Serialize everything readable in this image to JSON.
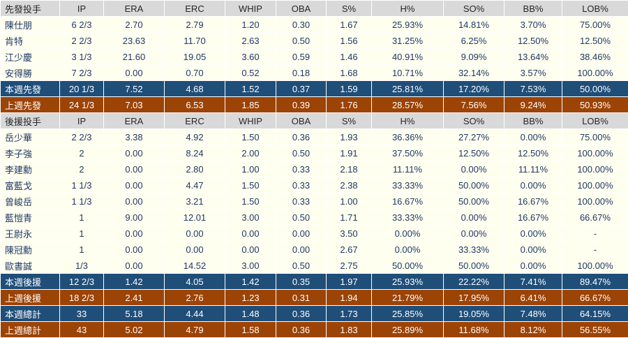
{
  "colors": {
    "header_bg": "#d9d9d9",
    "header_text": "#262626",
    "data_bg": "#fffff0",
    "data_text": "#1f3864",
    "blue_bg": "#1f4e79",
    "brown_bg": "#9c4306",
    "summary_text": "#ffffff",
    "grid": "#ffffff"
  },
  "chart_data": {
    "type": "table",
    "columns": [
      "IP",
      "ERA",
      "ERC",
      "WHIP",
      "OBA",
      "S%",
      "H%",
      "SO%",
      "BB%",
      "LOB%"
    ],
    "sections": [
      {
        "header": "先發投手",
        "rows": [
          {
            "style": "data",
            "label": "陳仕朋",
            "values": [
              "6 2/3",
              "2.70",
              "2.79",
              "1.20",
              "0.30",
              "1.67",
              "25.93%",
              "14.81%",
              "3.70%",
              "75.00%"
            ]
          },
          {
            "style": "data",
            "label": "肯特",
            "values": [
              "2 2/3",
              "23.63",
              "11.70",
              "2.63",
              "0.50",
              "1.56",
              "31.25%",
              "6.25%",
              "12.50%",
              "12.50%"
            ]
          },
          {
            "style": "data",
            "label": "江少慶",
            "values": [
              "3 1/3",
              "21.60",
              "19.05",
              "3.60",
              "0.59",
              "1.46",
              "40.91%",
              "9.09%",
              "13.64%",
              "38.46%"
            ]
          },
          {
            "style": "data",
            "label": "安得勝",
            "values": [
              "7 2/3",
              "0.00",
              "0.70",
              "0.52",
              "0.18",
              "1.68",
              "10.71%",
              "32.14%",
              "3.57%",
              "100.00%"
            ]
          },
          {
            "style": "blue",
            "label": "本週先發",
            "values": [
              "20 1/3",
              "7.52",
              "4.68",
              "1.52",
              "0.37",
              "1.59",
              "25.81%",
              "17.20%",
              "7.53%",
              "50.00%"
            ]
          },
          {
            "style": "brown",
            "label": "上週先發",
            "values": [
              "24 1/3",
              "7.03",
              "6.53",
              "1.85",
              "0.39",
              "1.76",
              "28.57%",
              "7.56%",
              "9.24%",
              "50.93%"
            ]
          }
        ]
      },
      {
        "header": "後援投手",
        "rows": [
          {
            "style": "data",
            "label": "岳少華",
            "values": [
              "2 2/3",
              "3.38",
              "4.92",
              "1.50",
              "0.36",
              "1.93",
              "36.36%",
              "27.27%",
              "0.00%",
              "75.00%"
            ]
          },
          {
            "style": "data",
            "label": "李子強",
            "values": [
              "2",
              "0.00",
              "8.24",
              "2.00",
              "0.50",
              "1.91",
              "37.50%",
              "12.50%",
              "12.50%",
              "100.00%"
            ]
          },
          {
            "style": "data",
            "label": "李建勳",
            "values": [
              "2",
              "0.00",
              "2.80",
              "1.00",
              "0.33",
              "2.18",
              "11.11%",
              "0.00%",
              "11.11%",
              "100.00%"
            ]
          },
          {
            "style": "data",
            "label": "富藍戈",
            "values": [
              "1 1/3",
              "0.00",
              "4.47",
              "1.50",
              "0.33",
              "2.38",
              "33.33%",
              "50.00%",
              "0.00%",
              "100.00%"
            ]
          },
          {
            "style": "data",
            "label": "曾峻岳",
            "values": [
              "1 1/3",
              "0.00",
              "3.21",
              "1.50",
              "0.33",
              "1.00",
              "16.67%",
              "50.00%",
              "16.67%",
              "100.00%"
            ]
          },
          {
            "style": "data",
            "label": "藍愷青",
            "values": [
              "1",
              "9.00",
              "12.01",
              "3.00",
              "0.50",
              "1.71",
              "33.33%",
              "0.00%",
              "16.67%",
              "66.67%"
            ]
          },
          {
            "style": "data",
            "label": "王尉永",
            "values": [
              "1",
              "0.00",
              "0.00",
              "0.00",
              "0.00",
              "3.50",
              "0.00%",
              "0.00%",
              "0.00%",
              "-"
            ]
          },
          {
            "style": "data",
            "label": "陳冠勳",
            "values": [
              "1",
              "0.00",
              "0.00",
              "0.00",
              "0.00",
              "2.67",
              "0.00%",
              "33.33%",
              "0.00%",
              "-"
            ]
          },
          {
            "style": "data",
            "label": "歐書誠",
            "values": [
              "1/3",
              "0.00",
              "14.52",
              "3.00",
              "0.50",
              "2.75",
              "50.00%",
              "50.00%",
              "0.00%",
              "100.00%"
            ]
          },
          {
            "style": "blue",
            "label": "本週後援",
            "values": [
              "12 2/3",
              "1.42",
              "4.05",
              "1.42",
              "0.35",
              "1.97",
              "25.93%",
              "22.22%",
              "7.41%",
              "89.47%"
            ]
          },
          {
            "style": "brown",
            "label": "上週後援",
            "values": [
              "18 2/3",
              "2.41",
              "2.76",
              "1.23",
              "0.31",
              "1.94",
              "21.79%",
              "17.95%",
              "6.41%",
              "66.67%"
            ]
          },
          {
            "style": "blue",
            "label": "本週總計",
            "values": [
              "33",
              "5.18",
              "4.44",
              "1.48",
              "0.36",
              "1.73",
              "25.85%",
              "19.05%",
              "7.48%",
              "64.15%"
            ]
          },
          {
            "style": "brown",
            "label": "上週總計",
            "values": [
              "43",
              "5.02",
              "4.79",
              "1.58",
              "0.36",
              "1.83",
              "25.89%",
              "11.68%",
              "8.12%",
              "56.55%"
            ]
          }
        ]
      }
    ]
  }
}
